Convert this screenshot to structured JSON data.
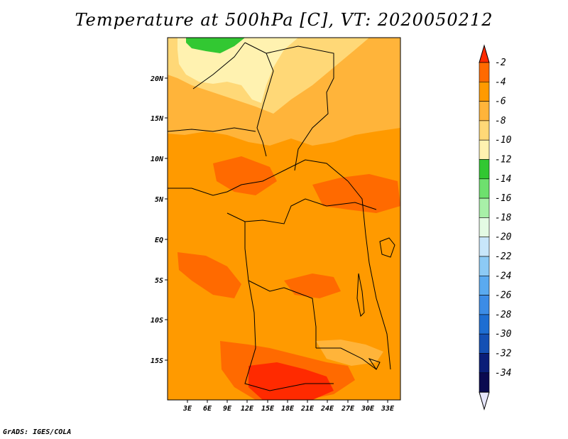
{
  "title": "Temperature at 500hPa [C], VT: 2020050212",
  "footer": "GrADS: IGES/COLA",
  "lon_ticks": [
    "3E",
    "6E",
    "9E",
    "12E",
    "15E",
    "18E",
    "21E",
    "24E",
    "27E",
    "30E",
    "33E"
  ],
  "lat_ticks": [
    "20N",
    "15N",
    "10N",
    "5N",
    "EQ",
    "5S",
    "10S",
    "15S"
  ],
  "colorbar": {
    "labels": [
      "-2",
      "-4",
      "-6",
      "-8",
      "-10",
      "-12",
      "-14",
      "-16",
      "-18",
      "-20",
      "-22",
      "-24",
      "-26",
      "-28",
      "-30",
      "-32",
      "-34"
    ],
    "colors": [
      "#ff2a00",
      "#ff6a00",
      "#ff9a00",
      "#ffb43a",
      "#ffd877",
      "#fff2b0",
      "#32c832",
      "#6ee06e",
      "#a8f0a8",
      "#e4fbe4",
      "#c8e6fa",
      "#8ccaf5",
      "#5aaaf0",
      "#3c8ce6",
      "#1e6ed2",
      "#1450b4",
      "#0a1e78",
      "#0a0a50"
    ],
    "above_color": "#ff2a00",
    "below_color": "#e6e6fa"
  },
  "map_background": "#ff9a00"
}
